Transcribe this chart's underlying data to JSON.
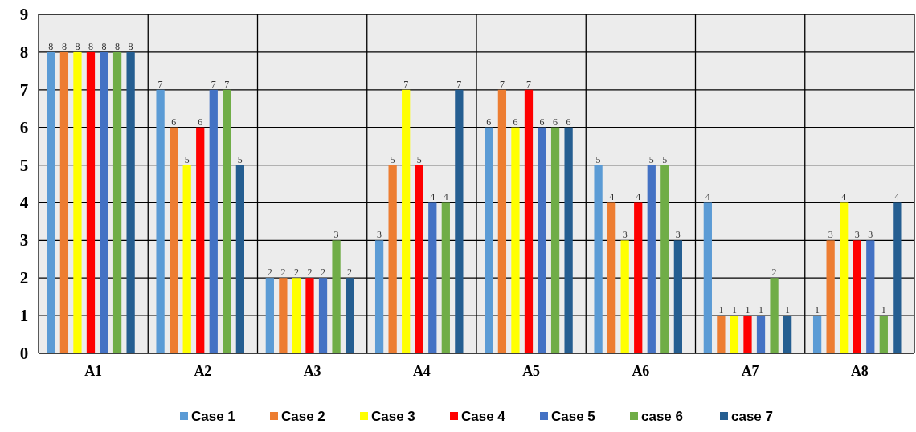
{
  "chart_data": {
    "type": "bar",
    "categories": [
      "A1",
      "A2",
      "A3",
      "A4",
      "A5",
      "A6",
      "A7",
      "A8"
    ],
    "series": [
      {
        "name": "Case 1",
        "color": "#5b9bd5",
        "values": [
          8,
          7,
          2,
          3,
          6,
          5,
          4,
          1
        ]
      },
      {
        "name": "Case 2",
        "color": "#ed7d31",
        "values": [
          8,
          6,
          2,
          5,
          7,
          4,
          1,
          3
        ]
      },
      {
        "name": "Case 3",
        "color": "#ffff00",
        "values": [
          8,
          5,
          2,
          7,
          6,
          3,
          1,
          4
        ]
      },
      {
        "name": "Case 4",
        "color": "#ff0000",
        "values": [
          8,
          6,
          2,
          5,
          7,
          4,
          1,
          3
        ]
      },
      {
        "name": "Case 5",
        "color": "#4472c4",
        "values": [
          8,
          7,
          2,
          4,
          6,
          5,
          1,
          3
        ]
      },
      {
        "name": "case 6",
        "color": "#70ad47",
        "values": [
          8,
          7,
          3,
          4,
          6,
          5,
          2,
          1
        ]
      },
      {
        "name": "case 7",
        "color": "#255e91",
        "values": [
          8,
          5,
          2,
          7,
          6,
          3,
          1,
          4
        ]
      }
    ],
    "ylim": [
      0,
      9
    ],
    "yticks": [
      0,
      1,
      2,
      3,
      4,
      5,
      6,
      7,
      8,
      9
    ],
    "grid": "y",
    "legend": "bottom",
    "data_labels": true
  }
}
